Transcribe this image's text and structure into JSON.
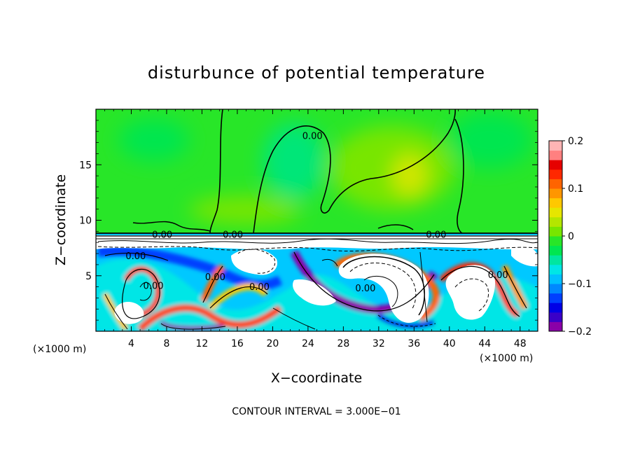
{
  "chart_data": {
    "type": "heatmap",
    "title": "disturbunce of potential temperature",
    "xlabel": "X−coordinate",
    "ylabel": "Z−coordinate",
    "x_unit": "(×1000 m)",
    "z_unit": "(×1000 m)",
    "xlim": [
      0,
      50
    ],
    "ylim": [
      0,
      20
    ],
    "x_ticks": [
      4,
      8,
      12,
      16,
      20,
      24,
      28,
      32,
      36,
      40,
      44,
      48
    ],
    "y_ticks": [
      5,
      10,
      15
    ],
    "contour_interval_text": "CONTOUR INTERVAL = 3.000E−01",
    "contour_labels": [
      {
        "text": "0.00",
        "x": 24.5,
        "z": 17.5
      },
      {
        "text": "0.00",
        "x": 15.5,
        "z": 8.6
      },
      {
        "text": "0.00",
        "x": 38.5,
        "z": 8.6
      },
      {
        "text": "0.00",
        "x": 7.5,
        "z": 8.6
      },
      {
        "text": "0.00",
        "x": 4.5,
        "z": 6.7
      },
      {
        "text": "0.00",
        "x": 6.5,
        "z": 4.0
      },
      {
        "text": "0.00",
        "x": 13.5,
        "z": 4.8
      },
      {
        "text": "0.00",
        "x": 18.5,
        "z": 3.9
      },
      {
        "text": "0.00",
        "x": 30.5,
        "z": 3.8
      },
      {
        "text": "0.00",
        "x": 45.5,
        "z": 5.0
      }
    ],
    "colorbar": {
      "min": -0.2,
      "max": 0.2,
      "tick_values": [
        0.2,
        0.1,
        0,
        -0.1,
        -0.2
      ],
      "tick_labels": [
        "0.2",
        "0.1",
        "0",
        "−0.1",
        "−0.2"
      ],
      "colors": [
        "#8a00a8",
        "#3a00c8",
        "#0000e6",
        "#0040ff",
        "#0088ff",
        "#00c0ff",
        "#00e6e6",
        "#00e6a0",
        "#00e650",
        "#28e628",
        "#78e600",
        "#b4e600",
        "#e6e600",
        "#ffc800",
        "#ff9600",
        "#ff6400",
        "#ff2800",
        "#e60000",
        "#ff8080",
        "#ffb4b4"
      ]
    },
    "field_description_note": null
  }
}
